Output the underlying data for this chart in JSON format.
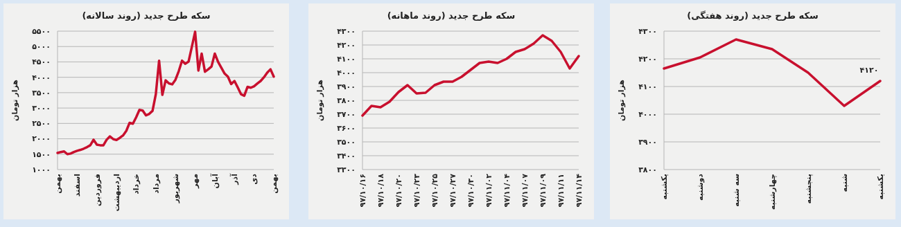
{
  "chart_data": [
    {
      "type": "line",
      "title": "سکه طرح جدید (روند سالانه)",
      "ylabel": "هزار تومان",
      "grid": "y",
      "categories": [
        "بهمن",
        null,
        null,
        null,
        null,
        null,
        "اسفند",
        null,
        null,
        null,
        null,
        null,
        "فروردین",
        null,
        null,
        null,
        null,
        null,
        "اردیبهشت",
        null,
        null,
        null,
        null,
        null,
        "خرداد",
        null,
        null,
        null,
        null,
        null,
        "مرداد",
        null,
        null,
        null,
        null,
        null,
        "شهریور",
        null,
        null,
        null,
        null,
        null,
        "مهر",
        null,
        null,
        null,
        null,
        null,
        "آبان",
        null,
        null,
        null,
        null,
        null,
        "آذر",
        null,
        null,
        null,
        null,
        null,
        "دی",
        null,
        null,
        null,
        null,
        null,
        "بهمن"
      ],
      "series": [
        {
          "color": "#c8102e",
          "values": [
            1540,
            1570,
            1590,
            1500,
            1520,
            1570,
            1610,
            1640,
            1680,
            1730,
            1790,
            1970,
            1810,
            1790,
            1790,
            1970,
            2080,
            1990,
            1960,
            2030,
            2110,
            2260,
            2520,
            2490,
            2700,
            2940,
            2920,
            2760,
            2810,
            2910,
            3450,
            4540,
            3430,
            3900,
            3800,
            3770,
            3920,
            4200,
            4540,
            4440,
            4510,
            4990,
            5480,
            4220,
            4770,
            4180,
            4260,
            4350,
            4770,
            4500,
            4310,
            4120,
            4020,
            3780,
            3880,
            3670,
            3450,
            3400,
            3690,
            3660,
            3710,
            3800,
            3880,
            4000,
            4150,
            4260,
            4020
          ]
        }
      ],
      "ylim": [
        1000,
        5500
      ],
      "yticks": [
        {
          "value": 1000,
          "label": "۱۰۰۰"
        },
        {
          "value": 1500,
          "label": "۱۵۰۰"
        },
        {
          "value": 2000,
          "label": "۲۰۰۰"
        },
        {
          "value": 2500,
          "label": "۲۵۰۰"
        },
        {
          "value": 3000,
          "label": "۳۰۰۰"
        },
        {
          "value": 3500,
          "label": "۳۵۰۰"
        },
        {
          "value": 4000,
          "label": "۴۰۰۰"
        },
        {
          "value": 4500,
          "label": "۴۵۰۰"
        },
        {
          "value": 5000,
          "label": "۵۰۰۰"
        },
        {
          "value": 5500,
          "label": "۵۵۰۰"
        }
      ]
    },
    {
      "type": "line",
      "title": "سکه طرح جدید (روند ماهانه)",
      "ylabel": "هزار تومان",
      "grid": "y",
      "categories": [
        "۹۷/۱۰/۱۶",
        null,
        "۹۷/۱۰/۱۸",
        null,
        "۹۷/۱۰/۲۰",
        null,
        "۹۷/۱۰/۲۳",
        null,
        "۹۷/۱۰/۲۵",
        null,
        "۹۷/۱۰/۲۷",
        null,
        "۹۷/۱۰/۳۰",
        null,
        "۹۷/۱۱/۰۲",
        null,
        "۹۷/۱۱/۰۴",
        null,
        "۹۷/۱۱/۰۷",
        null,
        "۹۷/۱۱/۰۹",
        null,
        "۹۷/۱۱/۱۱",
        null,
        "۹۷/۱۱/۱۴"
      ],
      "series": [
        {
          "color": "#c8102e",
          "values": [
            3690,
            3760,
            3750,
            3790,
            3860,
            3910,
            3850,
            3855,
            3910,
            3935,
            3935,
            3970,
            4020,
            4070,
            4080,
            4070,
            4100,
            4150,
            4170,
            4210,
            4270,
            4230,
            4150,
            4030,
            4120
          ]
        }
      ],
      "ylim": [
        3300,
        4300
      ],
      "yticks": [
        {
          "value": 3300,
          "label": "۳۳۰۰"
        },
        {
          "value": 3400,
          "label": "۳۴۰۰"
        },
        {
          "value": 3500,
          "label": "۳۵۰۰"
        },
        {
          "value": 3600,
          "label": "۳۶۰۰"
        },
        {
          "value": 3700,
          "label": "۳۷۰۰"
        },
        {
          "value": 3800,
          "label": "۳۸۰۰"
        },
        {
          "value": 3900,
          "label": "۳۹۰۰"
        },
        {
          "value": 4000,
          "label": "۴۰۰۰"
        },
        {
          "value": 4100,
          "label": "۴۱۰۰"
        },
        {
          "value": 4200,
          "label": "۴۲۰۰"
        },
        {
          "value": 4300,
          "label": "۴۳۰۰"
        }
      ]
    },
    {
      "type": "line",
      "title": "سکه طرح جدید (روند هفتگی)",
      "ylabel": "هزار تومان",
      "grid": "y",
      "categories": [
        "یکشنبه",
        "دوشنبه",
        "سه شنبه",
        "چهارشنبه",
        "پنجشنبه",
        "شنبه",
        "یکشنبه"
      ],
      "series": [
        {
          "color": "#c8102e",
          "values": [
            4165,
            4205,
            4270,
            4235,
            4150,
            4030,
            4120
          ],
          "value_labels": [
            null,
            null,
            null,
            null,
            null,
            null,
            "۴۱۲۰"
          ]
        }
      ],
      "ylim": [
        3800,
        4300
      ],
      "yticks": [
        {
          "value": 3800,
          "label": "۳۸۰۰"
        },
        {
          "value": 3900,
          "label": "۳۹۰۰"
        },
        {
          "value": 4000,
          "label": "۴۰۰۰"
        },
        {
          "value": 4100,
          "label": "۴۱۰۰"
        },
        {
          "value": 4200,
          "label": "۴۲۰۰"
        },
        {
          "value": 4300,
          "label": "۴۳۰۰"
        }
      ]
    }
  ]
}
